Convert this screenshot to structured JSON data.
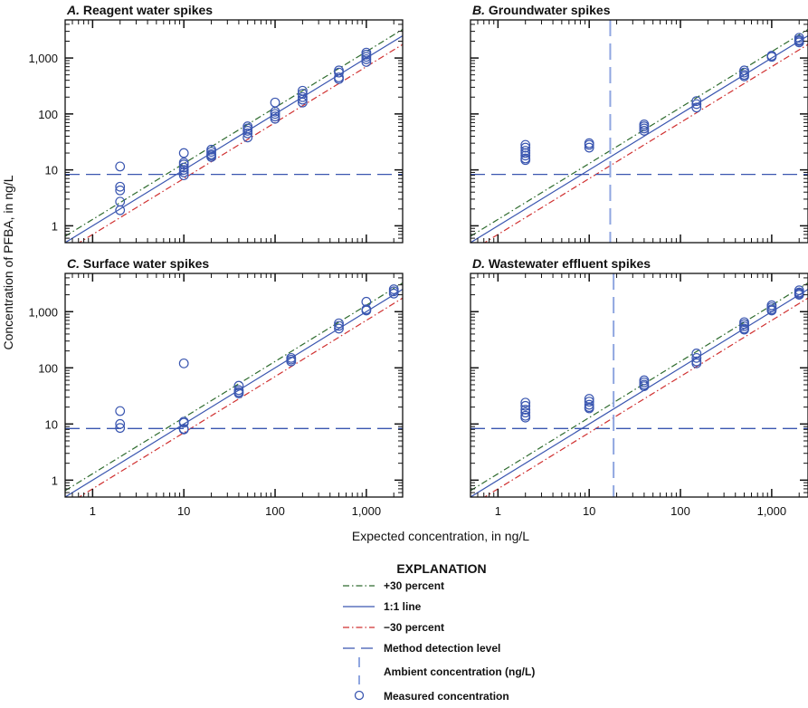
{
  "chart_data": {
    "type": "scatter",
    "ylabel": "Concentration of PFBA, in ng/L",
    "xlabel": "Expected concentration, in ng/L",
    "x_scale": "log",
    "y_scale": "log",
    "xlim": [
      0.5,
      2500
    ],
    "ylim": [
      0.5,
      4800
    ],
    "x_ticks": [
      1,
      10,
      100,
      1000
    ],
    "x_tick_labels": [
      "1",
      "10",
      "100",
      "1,000"
    ],
    "y_ticks": [
      1,
      10,
      100,
      1000
    ],
    "y_tick_labels": [
      "1",
      "10",
      "100",
      "1,000"
    ],
    "grid": false,
    "method_detection_level": 8.3,
    "colors": {
      "plus30": "#2e6b2e",
      "one_to_one": "#3a56b0",
      "minus30": "#d03030",
      "mdl": "#3a56b0",
      "ambient": "#8fa6e0",
      "points": "#3a56b0"
    },
    "panels": [
      {
        "letter": "A.",
        "title": "Reagent water spikes",
        "ambient": null,
        "points": [
          [
            2,
            11.5
          ],
          [
            2,
            5
          ],
          [
            2,
            4.3
          ],
          [
            2,
            2.7
          ],
          [
            2,
            1.9
          ],
          [
            10,
            20
          ],
          [
            10,
            13.5
          ],
          [
            10,
            12.5
          ],
          [
            10,
            11
          ],
          [
            10,
            10
          ],
          [
            10,
            9
          ],
          [
            10,
            8
          ],
          [
            20,
            23
          ],
          [
            20,
            21
          ],
          [
            20,
            19
          ],
          [
            20,
            18
          ],
          [
            20,
            17
          ],
          [
            50,
            60
          ],
          [
            50,
            55
          ],
          [
            50,
            50
          ],
          [
            50,
            45
          ],
          [
            50,
            38
          ],
          [
            100,
            160
          ],
          [
            100,
            110
          ],
          [
            100,
            100
          ],
          [
            100,
            90
          ],
          [
            100,
            82
          ],
          [
            200,
            260
          ],
          [
            200,
            230
          ],
          [
            200,
            200
          ],
          [
            200,
            180
          ],
          [
            200,
            160
          ],
          [
            500,
            600
          ],
          [
            500,
            550
          ],
          [
            500,
            450
          ],
          [
            500,
            420
          ],
          [
            1000,
            1250
          ],
          [
            1000,
            1150
          ],
          [
            1000,
            1050
          ],
          [
            1000,
            950
          ],
          [
            1000,
            850
          ]
        ]
      },
      {
        "letter": "B.",
        "title": "Groundwater spikes",
        "ambient": 17,
        "points": [
          [
            2,
            28
          ],
          [
            2,
            25
          ],
          [
            2,
            22
          ],
          [
            2,
            20
          ],
          [
            2,
            18
          ],
          [
            2,
            16
          ],
          [
            2,
            15
          ],
          [
            10,
            30
          ],
          [
            10,
            28
          ],
          [
            10,
            25
          ],
          [
            40,
            65
          ],
          [
            40,
            60
          ],
          [
            40,
            55
          ],
          [
            40,
            50
          ],
          [
            150,
            170
          ],
          [
            150,
            150
          ],
          [
            150,
            130
          ],
          [
            500,
            600
          ],
          [
            500,
            550
          ],
          [
            500,
            500
          ],
          [
            500,
            470
          ],
          [
            1000,
            1100
          ],
          [
            1000,
            1050
          ],
          [
            2000,
            2300
          ],
          [
            2000,
            2100
          ],
          [
            2000,
            2000
          ],
          [
            2000,
            1900
          ]
        ]
      },
      {
        "letter": "C.",
        "title": "Surface water spikes",
        "ambient": null,
        "points": [
          [
            2,
            17
          ],
          [
            2,
            10
          ],
          [
            2,
            8.5
          ],
          [
            10,
            120
          ],
          [
            10,
            11
          ],
          [
            10,
            10.5
          ],
          [
            10,
            8.2
          ],
          [
            10,
            8
          ],
          [
            40,
            48
          ],
          [
            40,
            40
          ],
          [
            40,
            37
          ],
          [
            40,
            35
          ],
          [
            150,
            150
          ],
          [
            150,
            140
          ],
          [
            150,
            130
          ],
          [
            500,
            620
          ],
          [
            500,
            560
          ],
          [
            500,
            500
          ],
          [
            1000,
            1500
          ],
          [
            1000,
            1100
          ],
          [
            1000,
            1050
          ],
          [
            2000,
            2500
          ],
          [
            2000,
            2300
          ],
          [
            2000,
            2100
          ]
        ]
      },
      {
        "letter": "D.",
        "title": "Wastewater effluent spikes",
        "ambient": 18.5,
        "points": [
          [
            2,
            24
          ],
          [
            2,
            21
          ],
          [
            2,
            18
          ],
          [
            2,
            16
          ],
          [
            2,
            14
          ],
          [
            2,
            13
          ],
          [
            10,
            28
          ],
          [
            10,
            25
          ],
          [
            10,
            22
          ],
          [
            10,
            20
          ],
          [
            10,
            19
          ],
          [
            40,
            60
          ],
          [
            40,
            55
          ],
          [
            40,
            50
          ],
          [
            40,
            47
          ],
          [
            150,
            180
          ],
          [
            150,
            150
          ],
          [
            150,
            130
          ],
          [
            150,
            120
          ],
          [
            500,
            650
          ],
          [
            500,
            600
          ],
          [
            500,
            550
          ],
          [
            500,
            500
          ],
          [
            500,
            480
          ],
          [
            1000,
            1300
          ],
          [
            1000,
            1200
          ],
          [
            1000,
            1100
          ],
          [
            1000,
            1050
          ],
          [
            2000,
            2400
          ],
          [
            2000,
            2200
          ],
          [
            2000,
            2100
          ],
          [
            2000,
            2000
          ]
        ]
      }
    ],
    "legend": {
      "title": "EXPLANATION",
      "placement": "bottom-center",
      "items": [
        "+30 percent",
        "1:1 line",
        "−30 percent",
        "Method detection level",
        "Ambient concentration (ng/L)",
        "Measured concentration"
      ]
    }
  }
}
